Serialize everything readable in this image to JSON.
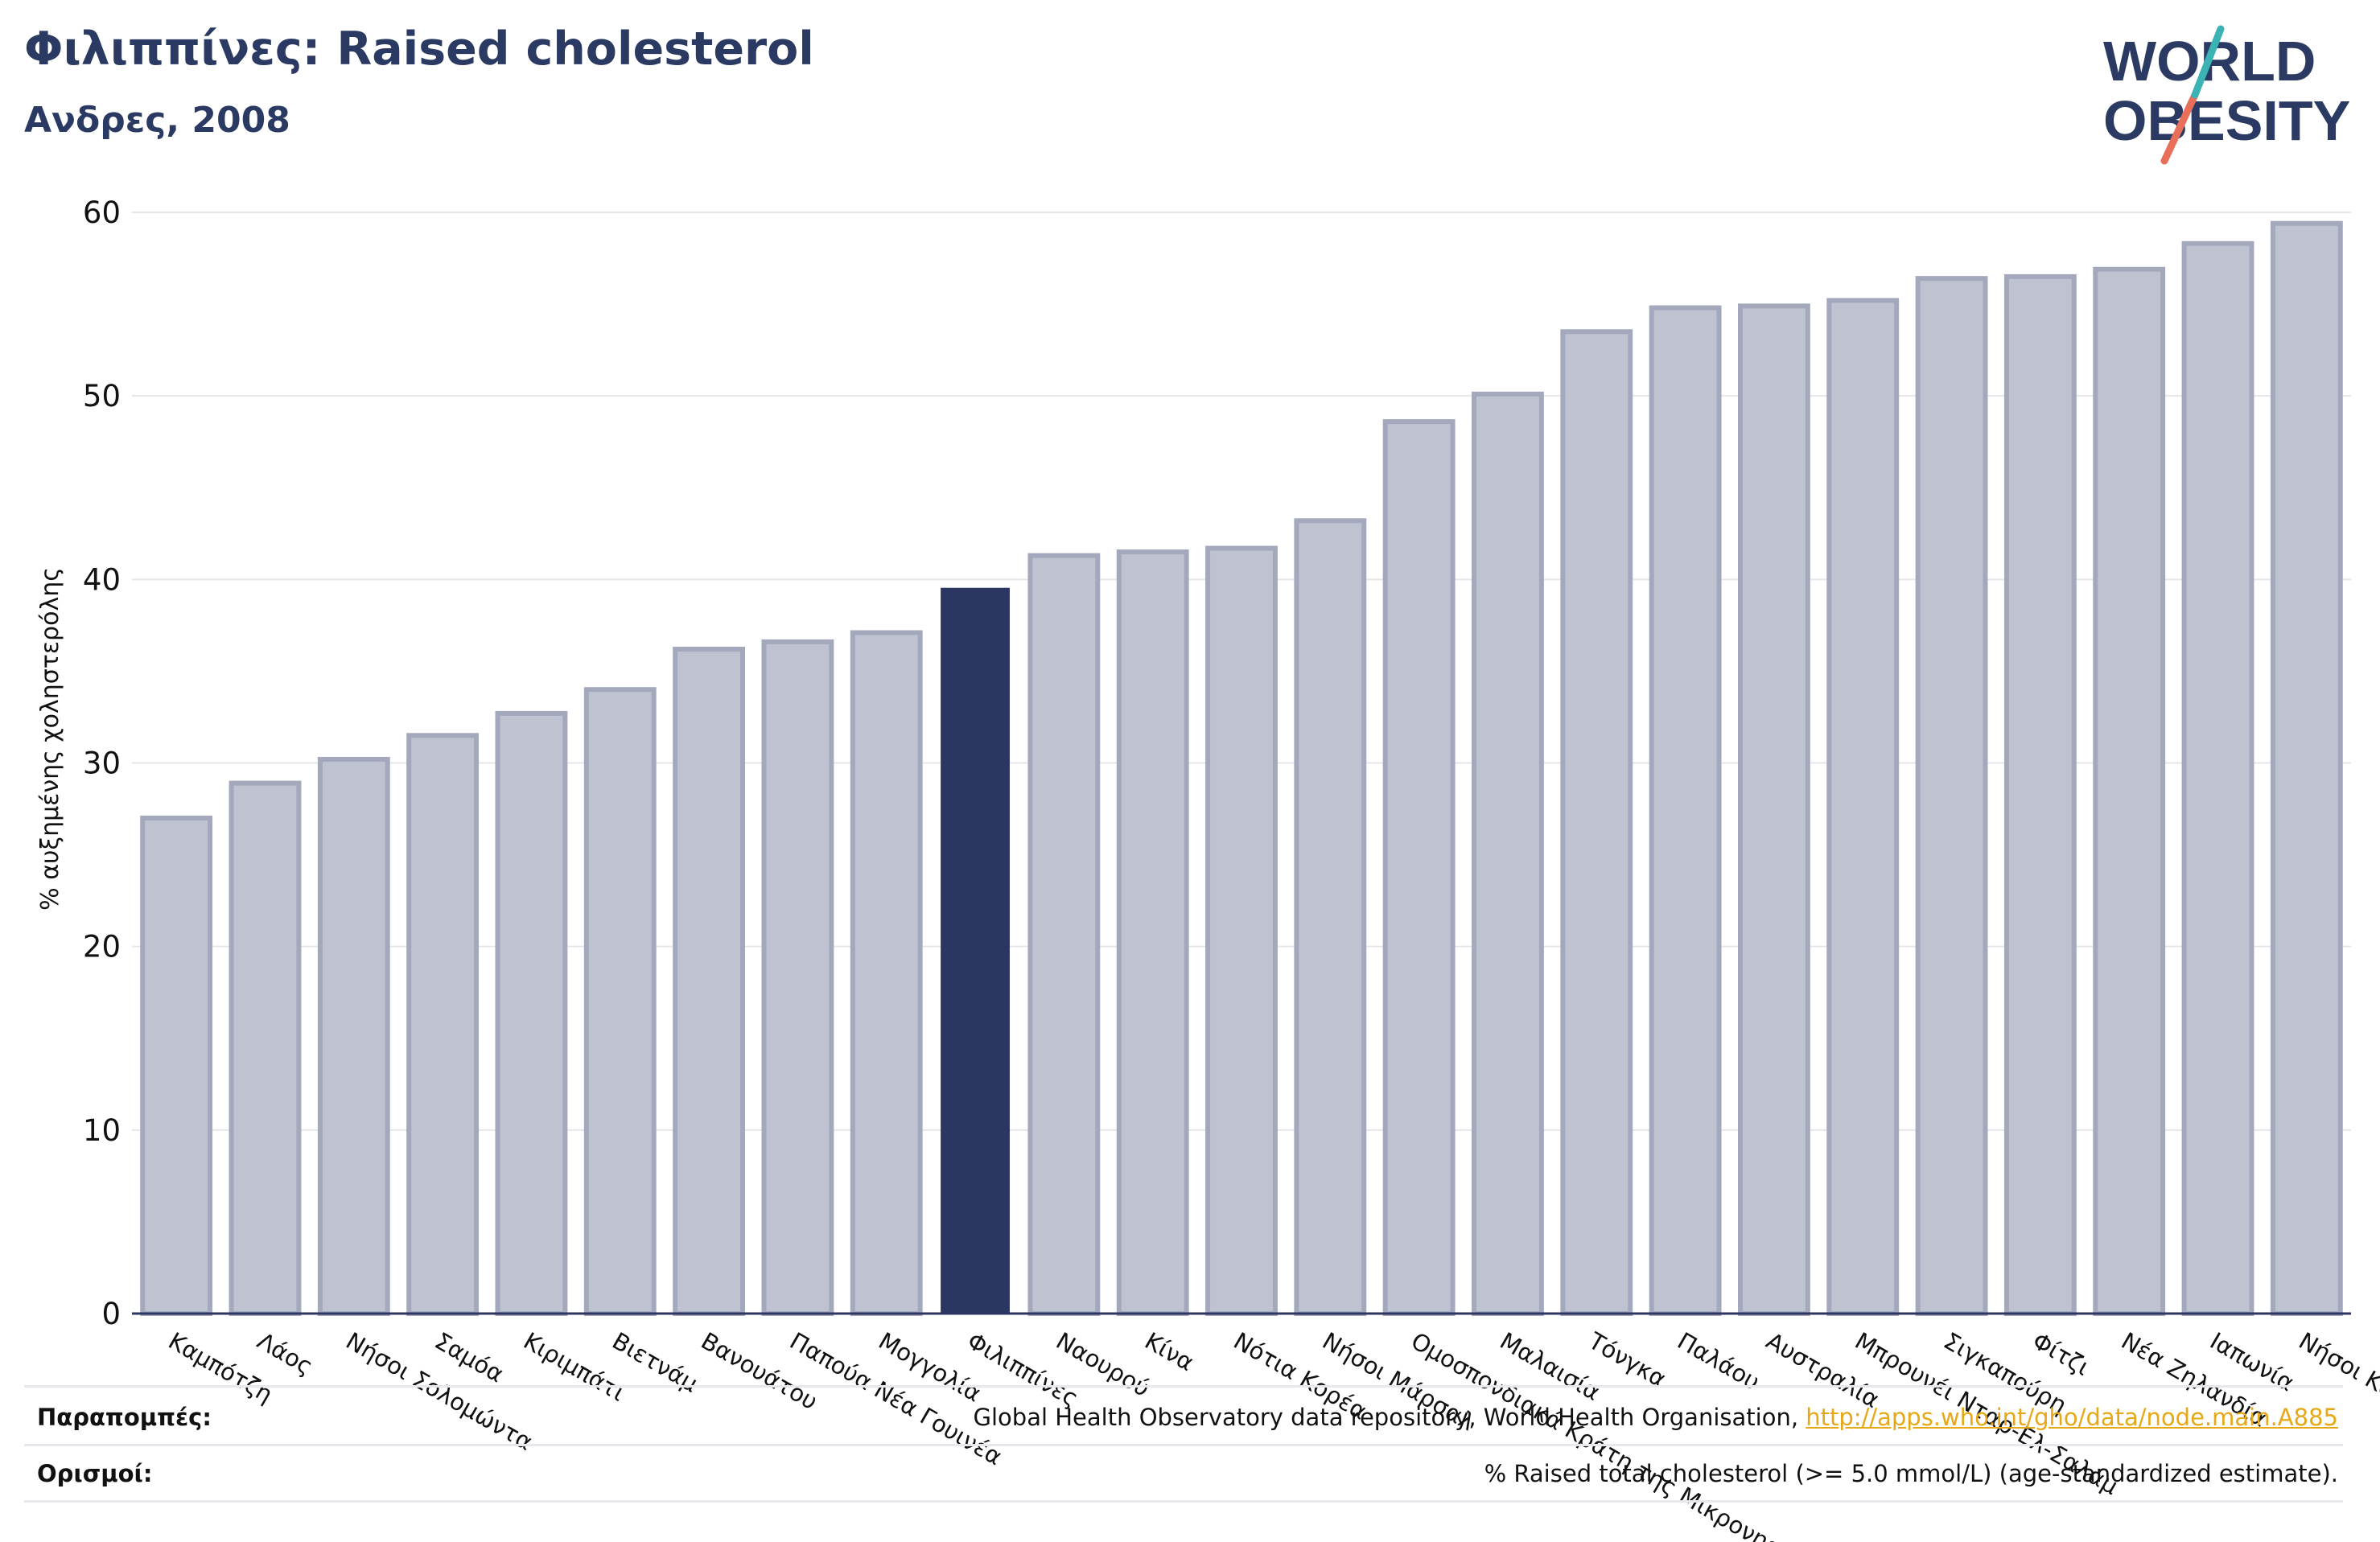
{
  "header": {
    "title": "Φιλιππίνες: Raised cholesterol",
    "subtitle": "Ανδρες, 2008",
    "logo_text": "WORLD OBESITY"
  },
  "colors": {
    "bar": "#bfc2d0",
    "bar_border": "#a3a8bd",
    "highlight": "#2b3662",
    "grid": "#e6e6ea",
    "axis": "#2b3662",
    "title": "#2b3a63",
    "link": "#e6a817"
  },
  "chart_data": {
    "type": "bar",
    "ylabel": "% αυξημένης χοληστερόλης",
    "ylim": [
      0,
      60
    ],
    "yticks": [
      0,
      10,
      20,
      30,
      40,
      50,
      60
    ],
    "grid": true,
    "highlight_category": "Φιλιππίνες",
    "categories": [
      "Καμπότζη",
      "Λάος",
      "Νήσοι Σολομώντα",
      "Σαμόα",
      "Κιριμπάτι",
      "Βιετνάμ",
      "Βανουάτου",
      "Παπούα Νέα Γουινέα",
      "Μογγολία",
      "Φιλιππίνες",
      "Ναουρού",
      "Κίνα",
      "Νότια Κορέα",
      "Νήσοι Μάρσαλ",
      "Ομοσπονδιακά Κράτη της Μικρονησίας",
      "Μαλαισία",
      "Τόνγκα",
      "Παλάου",
      "Αυστραλία",
      "Μπρουνέι Νταρ-Ελ-Σαλάμ",
      "Σιγκαπούρη",
      "Φίτζι",
      "Νέα Ζηλανδία",
      "Ιαπωνία",
      "Νήσοι Κουκ"
    ],
    "values": [
      27.0,
      28.9,
      30.2,
      31.5,
      32.7,
      34.0,
      36.2,
      36.6,
      37.1,
      39.5,
      41.3,
      41.5,
      41.7,
      43.2,
      48.6,
      50.1,
      53.5,
      54.8,
      54.9,
      55.2,
      56.4,
      56.5,
      56.9,
      58.3,
      59.4
    ]
  },
  "footer": {
    "sources_label": "Παραπομπές:",
    "sources_text": "Global Health Observatory data repository, World Health Organisation,",
    "sources_link": "http://apps.who.int/gho/data/node.main.A885",
    "definitions_label": "Ορισμοί:",
    "definitions_text": "% Raised total cholesterol (>= 5.0 mmol/L) (age-standardized estimate)."
  }
}
